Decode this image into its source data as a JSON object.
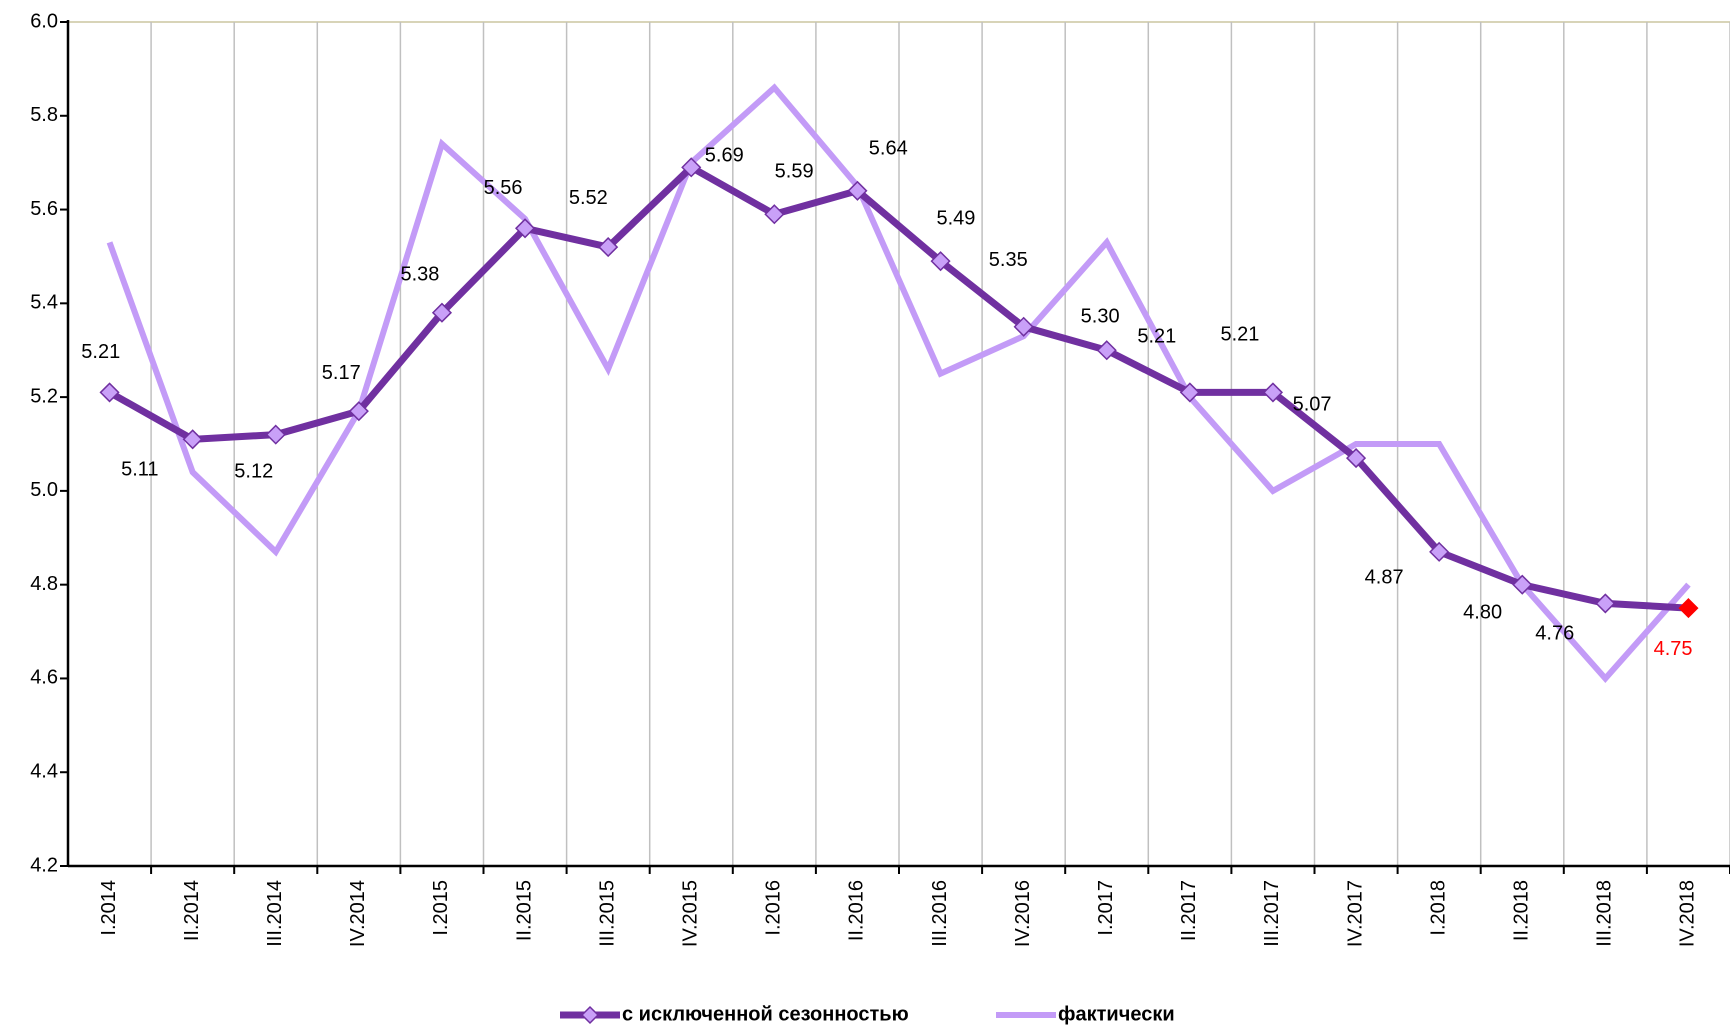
{
  "chart_data": {
    "type": "line",
    "categories": [
      "I.2014",
      "II.2014",
      "III.2014",
      "IV.2014",
      "I.2015",
      "II.2015",
      "III.2015",
      "IV.2015",
      "I.2016",
      "II.2016",
      "III.2016",
      "IV.2016",
      "I.2017",
      "II.2017",
      "III.2017",
      "IV.2017",
      "I.2018",
      "II.2018",
      "III.2018",
      "IV.2018"
    ],
    "series": [
      {
        "name": "с исключенной сезонностью",
        "color": "#7030a0",
        "marker_color": "#c9a0f8",
        "last_point_color": "#ff0000",
        "values": [
          5.21,
          5.11,
          5.12,
          5.17,
          5.38,
          5.56,
          5.52,
          5.69,
          5.59,
          5.64,
          5.49,
          5.35,
          5.3,
          5.21,
          5.21,
          5.07,
          4.87,
          4.8,
          4.76,
          4.75
        ],
        "value_labels": [
          "5.21",
          "5.11",
          "5.12",
          "5.17",
          "5.38",
          "5.56",
          "5.52",
          "5.69",
          "5.59",
          "5.64",
          "5.49",
          "5.35",
          "5.30",
          "5.21",
          "5.21",
          "5.07",
          "4.87",
          "4.80",
          "4.76",
          "4.75"
        ]
      },
      {
        "name": "фактически",
        "color": "#c39bf7",
        "values": [
          5.53,
          5.04,
          4.87,
          5.17,
          5.74,
          5.58,
          5.26,
          5.7,
          5.86,
          5.65,
          5.25,
          5.33,
          5.53,
          5.2,
          5.0,
          5.1,
          5.1,
          4.8,
          4.6,
          4.8
        ]
      }
    ],
    "ylim": [
      4.2,
      6.0
    ],
    "yticks": [
      4.2,
      4.4,
      4.6,
      4.8,
      {
        "value": 5,
        "label": "5.0"
      },
      5.2,
      5.4,
      5.6,
      5.8,
      {
        "value": 6,
        "label": "6.0"
      }
    ],
    "legend": "bottom"
  }
}
